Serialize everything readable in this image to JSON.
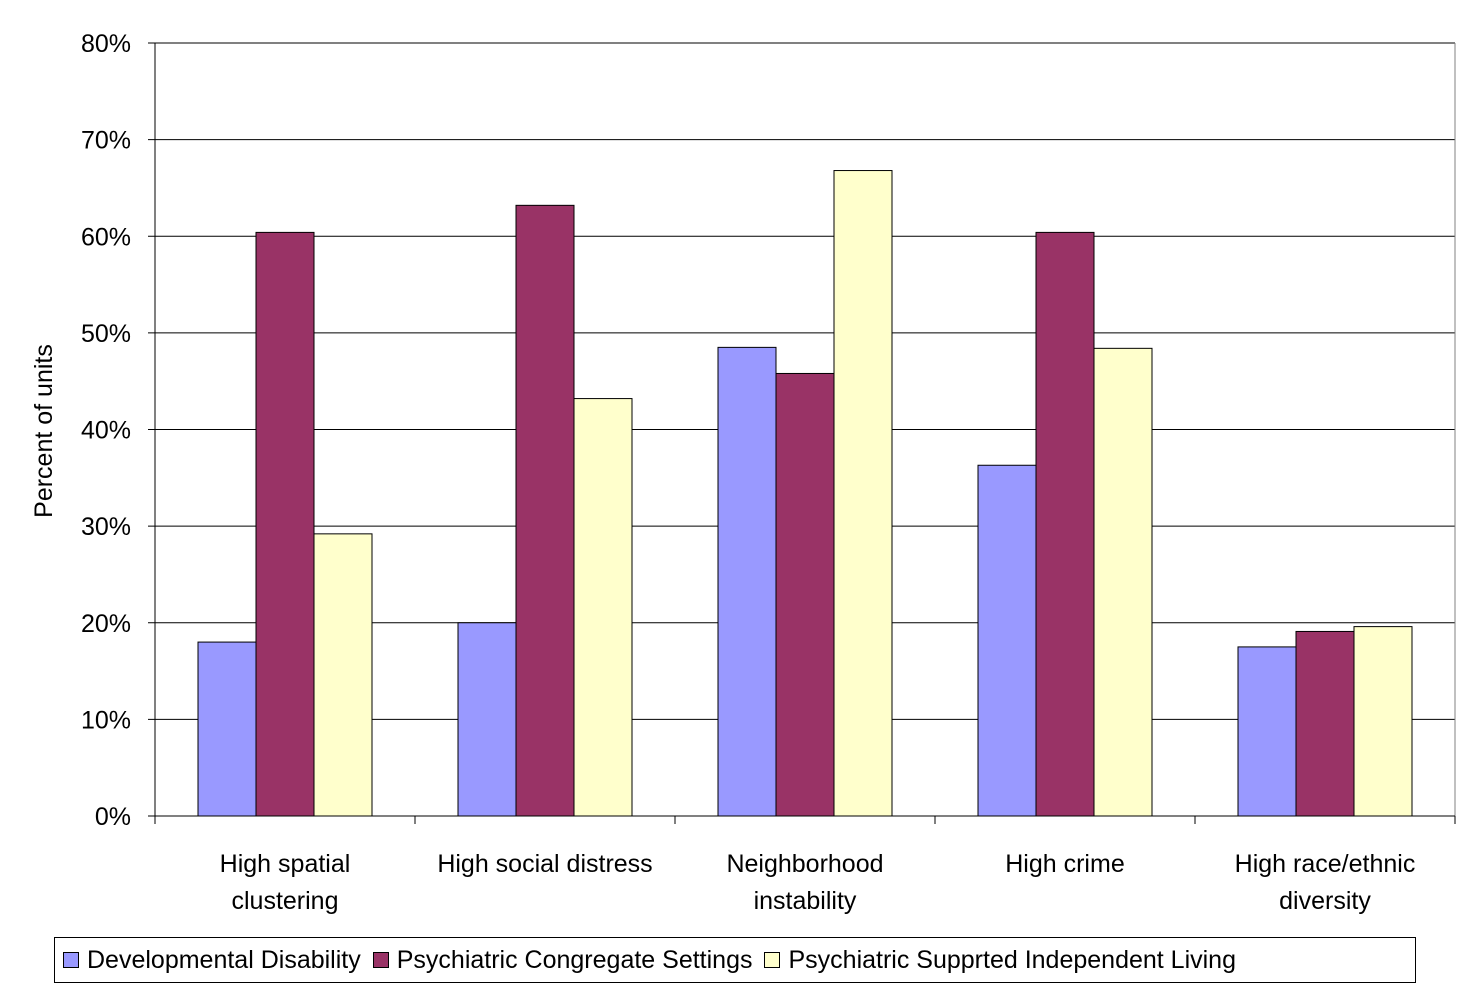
{
  "chart_data": {
    "type": "bar",
    "title": "",
    "xlabel": "",
    "ylabel": "Percent of units",
    "ylim": [
      0,
      80
    ],
    "yticks": [
      "0%",
      "10%",
      "20%",
      "30%",
      "40%",
      "50%",
      "60%",
      "70%",
      "80%"
    ],
    "grid": true,
    "legend_position": "bottom",
    "categories": [
      [
        "High spatial",
        "clustering"
      ],
      [
        "High social distress"
      ],
      [
        "Neighborhood",
        "instability"
      ],
      [
        "High crime"
      ],
      [
        "High race/ethnic",
        "diversity"
      ]
    ],
    "series": [
      {
        "name": "Developmental Disability",
        "color": "#9999ff",
        "values": [
          18,
          20,
          48.5,
          36.3,
          17.5
        ]
      },
      {
        "name": "Psychiatric Congregate Settings",
        "color": "#993366",
        "values": [
          60.4,
          63.2,
          45.8,
          60.4,
          19.1
        ]
      },
      {
        "name": "Psychiatric Supprted Independent Living",
        "color": "#ffffcc",
        "values": [
          29.2,
          43.2,
          66.8,
          48.4,
          19.6
        ]
      }
    ]
  }
}
